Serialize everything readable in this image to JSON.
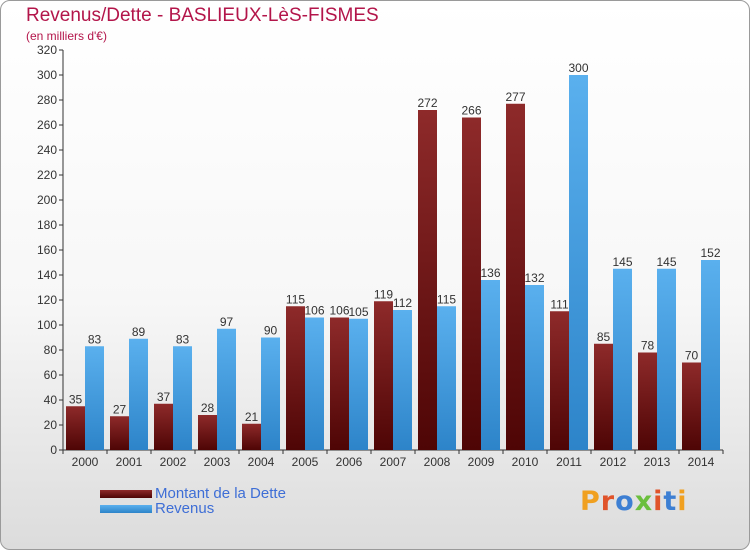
{
  "chart_data": {
    "type": "bar",
    "title": "Revenus/Dette - BASLIEUX-LèS-FISMES",
    "subtitle": "(en milliers d'€)",
    "categories": [
      "2000",
      "2001",
      "2002",
      "2003",
      "2004",
      "2005",
      "2006",
      "2007",
      "2008",
      "2009",
      "2010",
      "2011",
      "2012",
      "2013",
      "2014"
    ],
    "series": [
      {
        "name": "Montant de la Dette",
        "color": "#7a1010",
        "values": [
          35,
          27,
          37,
          28,
          21,
          115,
          106,
          119,
          272,
          266,
          277,
          111,
          85,
          78,
          70
        ]
      },
      {
        "name": "Revenus",
        "color": "#4aa3e6",
        "values": [
          83,
          89,
          83,
          97,
          90,
          106,
          105,
          112,
          115,
          136,
          132,
          300,
          145,
          145,
          152
        ]
      }
    ],
    "ylim": [
      0,
      320
    ],
    "yticks": [
      0,
      20,
      40,
      60,
      80,
      100,
      120,
      140,
      160,
      180,
      200,
      220,
      240,
      260,
      280,
      300,
      320
    ],
    "grid": false,
    "legend_position": "bottom-left"
  },
  "branding": {
    "logo_letters": [
      "P",
      "r",
      "o",
      "x",
      "i",
      "t",
      "i"
    ]
  },
  "colors": {
    "title": "#b3154a",
    "legend_text": "#3e6ed6",
    "axis": "#333333"
  }
}
